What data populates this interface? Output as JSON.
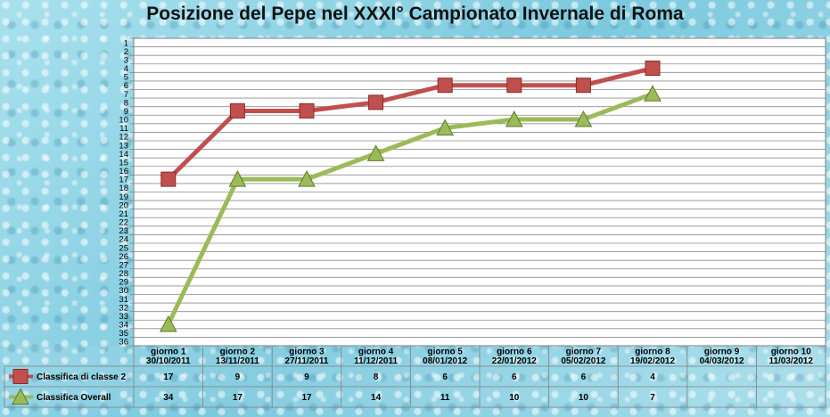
{
  "chart_data": {
    "type": "line",
    "title": "Posizione del Pepe nel XXXI° Campionato Invernale di Roma",
    "y_axis": {
      "min": 1,
      "max": 36,
      "reversed": true,
      "step": 1
    },
    "grid": true,
    "legend_placement": "table-left",
    "categories": [
      {
        "day": "giorno 1",
        "date": "30/10/2011"
      },
      {
        "day": "giorno 2",
        "date": "13/11/2011"
      },
      {
        "day": "giorno 3",
        "date": "27/11/2011"
      },
      {
        "day": "giorno 4",
        "date": "11/12/2011"
      },
      {
        "day": "giorno 5",
        "date": "08/01/2012"
      },
      {
        "day": "giorno 6",
        "date": "22/01/2012"
      },
      {
        "day": "giorno 7",
        "date": "05/02/2012"
      },
      {
        "day": "giorno 8",
        "date": "19/02/2012"
      },
      {
        "day": "giorno 9",
        "date": "04/03/2012"
      },
      {
        "day": "giorno 10",
        "date": "11/03/2012"
      }
    ],
    "series": [
      {
        "name": "Classifica  di classe  2",
        "marker": "square",
        "color": "#c0504d",
        "values": [
          17,
          9,
          9,
          8,
          6,
          6,
          6,
          4,
          null,
          null
        ]
      },
      {
        "name": "Classifica  Overall",
        "marker": "triangle",
        "color": "#9bbb59",
        "values": [
          34,
          17,
          17,
          14,
          11,
          10,
          10,
          7,
          null,
          null
        ]
      }
    ]
  }
}
